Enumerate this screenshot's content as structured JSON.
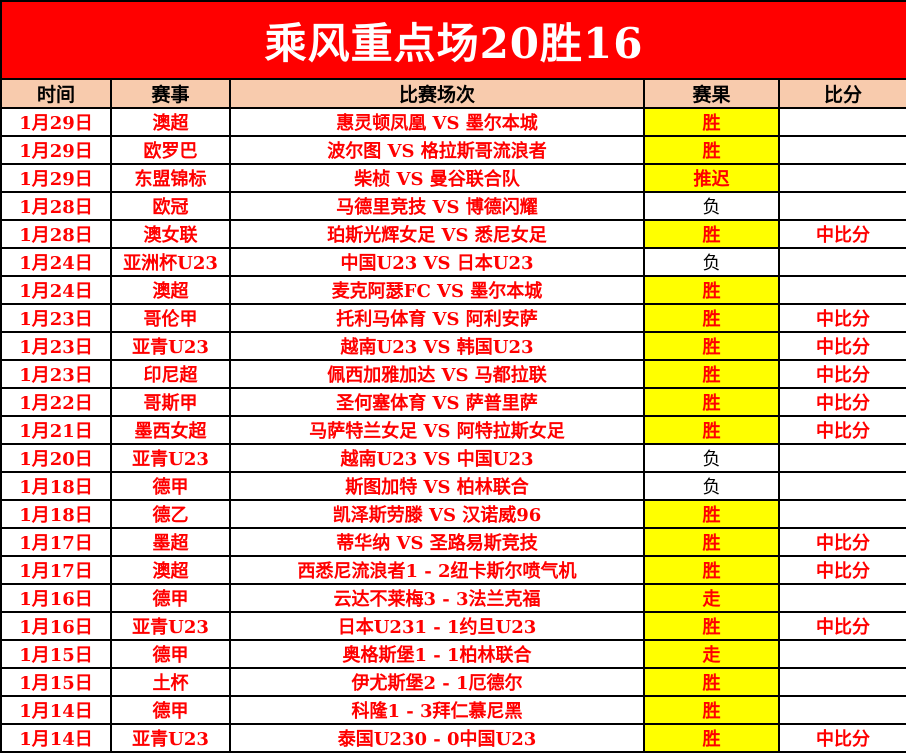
{
  "banner": {
    "title": "乘风重点场20胜16"
  },
  "colors": {
    "banner_bg": "#ff0000",
    "banner_text": "#ffffff",
    "header_bg": "#f8cbad",
    "highlight_bg": "#ffff00",
    "accent_text": "#ff0000",
    "loss_text": "#000000",
    "border": "#000000"
  },
  "table": {
    "columns": [
      "时间",
      "赛事",
      "比赛场次",
      "赛果",
      "比分"
    ],
    "rows": [
      {
        "date": "1月29日",
        "league": "澳超",
        "match": "惠灵顿凤凰 VS 墨尔本城",
        "result": "胜",
        "result_type": "win",
        "score": ""
      },
      {
        "date": "1月29日",
        "league": "欧罗巴",
        "match": "波尔图 VS 格拉斯哥流浪者",
        "result": "胜",
        "result_type": "win",
        "score": ""
      },
      {
        "date": "1月29日",
        "league": "东盟锦标",
        "match": "柴桢 VS 曼谷联合队",
        "result": "推迟",
        "result_type": "postponed",
        "score": ""
      },
      {
        "date": "1月28日",
        "league": "欧冠",
        "match": "马德里竞技 VS 博德闪耀",
        "result": "负",
        "result_type": "loss",
        "score": ""
      },
      {
        "date": "1月28日",
        "league": "澳女联",
        "match": "珀斯光辉女足 VS 悉尼女足",
        "result": "胜",
        "result_type": "win",
        "score": "中比分"
      },
      {
        "date": "1月24日",
        "league": "亚洲杯U23",
        "match": "中国U23 VS 日本U23",
        "result": "负",
        "result_type": "loss",
        "score": ""
      },
      {
        "date": "1月24日",
        "league": "澳超",
        "match": "麦克阿瑟FC VS 墨尔本城",
        "result": "胜",
        "result_type": "win",
        "score": ""
      },
      {
        "date": "1月23日",
        "league": "哥伦甲",
        "match": "托利马体育 VS 阿利安萨",
        "result": "胜",
        "result_type": "win",
        "score": "中比分"
      },
      {
        "date": "1月23日",
        "league": "亚青U23",
        "match": "越南U23 VS 韩国U23",
        "result": "胜",
        "result_type": "win",
        "score": "中比分"
      },
      {
        "date": "1月23日",
        "league": "印尼超",
        "match": "佩西加雅加达 VS 马都拉联",
        "result": "胜",
        "result_type": "win",
        "score": "中比分"
      },
      {
        "date": "1月22日",
        "league": "哥斯甲",
        "match": "圣何塞体育 VS 萨普里萨",
        "result": "胜",
        "result_type": "win",
        "score": "中比分"
      },
      {
        "date": "1月21日",
        "league": "墨西女超",
        "match": "马萨特兰女足 VS 阿特拉斯女足",
        "result": "胜",
        "result_type": "win",
        "score": "中比分"
      },
      {
        "date": "1月20日",
        "league": "亚青U23",
        "match": "越南U23 VS 中国U23",
        "result": "负",
        "result_type": "loss",
        "score": ""
      },
      {
        "date": "1月18日",
        "league": "德甲",
        "match": "斯图加特 VS 柏林联合",
        "result": "负",
        "result_type": "loss",
        "score": ""
      },
      {
        "date": "1月18日",
        "league": "德乙",
        "match": "凯泽斯劳滕 VS 汉诺威96",
        "result": "胜",
        "result_type": "win",
        "score": ""
      },
      {
        "date": "1月17日",
        "league": "墨超",
        "match": "蒂华纳 VS 圣路易斯竞技",
        "result": "胜",
        "result_type": "win",
        "score": "中比分"
      },
      {
        "date": "1月17日",
        "league": "澳超",
        "match": "西悉尼流浪者1 - 2纽卡斯尔喷气机",
        "result": "胜",
        "result_type": "win",
        "score": "中比分"
      },
      {
        "date": "1月16日",
        "league": "德甲",
        "match": "云达不莱梅3 - 3法兰克福",
        "result": "走",
        "result_type": "push",
        "score": ""
      },
      {
        "date": "1月16日",
        "league": "亚青U23",
        "match": "日本U231 - 1约旦U23",
        "result": "胜",
        "result_type": "win",
        "score": "中比分"
      },
      {
        "date": "1月15日",
        "league": "德甲",
        "match": "奥格斯堡1 - 1柏林联合",
        "result": "走",
        "result_type": "push",
        "score": ""
      },
      {
        "date": "1月15日",
        "league": "土杯",
        "match": "伊尤斯堡2 - 1厄德尔",
        "result": "胜",
        "result_type": "win",
        "score": ""
      },
      {
        "date": "1月14日",
        "league": "德甲",
        "match": "科隆1 - 3拜仁慕尼黑",
        "result": "胜",
        "result_type": "win",
        "score": ""
      },
      {
        "date": "1月14日",
        "league": "亚青U23",
        "match": "泰国U230 - 0中国U23",
        "result": "胜",
        "result_type": "win",
        "score": "中比分"
      }
    ]
  }
}
